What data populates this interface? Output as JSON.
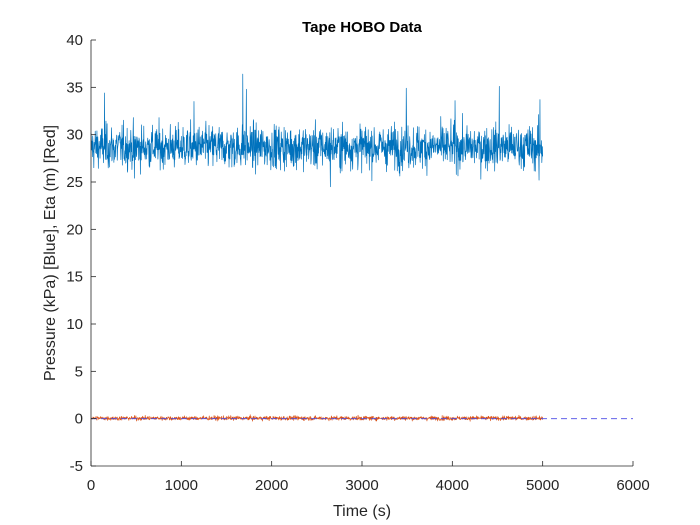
{
  "chart_data": {
    "type": "line",
    "title": "Tape HOBO Data",
    "xlabel": "Time (s)",
    "ylabel": "Pressure (kPa) [Blue], Eta (m) [Red]",
    "xlim": [
      0,
      6000
    ],
    "ylim": [
      -5,
      40
    ],
    "xticks": [
      0,
      1000,
      2000,
      3000,
      4000,
      5000,
      6000
    ],
    "yticks": [
      -5,
      0,
      5,
      10,
      15,
      20,
      25,
      30,
      35,
      40
    ],
    "grid": false,
    "legend": "none",
    "series": [
      {
        "key": "pressure",
        "color": "#0072BD",
        "style": "solid",
        "x_range": [
          0,
          5000
        ],
        "mean": 28.7,
        "min": 24.5,
        "max": 36.4,
        "noise_sd": 1.5,
        "spikes": [
          {
            "x": 1680,
            "y": 36.4
          },
          {
            "x": 1720,
            "y": 34.8
          },
          {
            "x": 4520,
            "y": 35.1
          },
          {
            "x": 3490,
            "y": 34.9
          },
          {
            "x": 150,
            "y": 34.4
          },
          {
            "x": 2650,
            "y": 24.5
          },
          {
            "x": 4970,
            "y": 33.7
          },
          {
            "x": 4960,
            "y": 25.2
          },
          {
            "x": 4030,
            "y": 33.6
          },
          {
            "x": 1140,
            "y": 33.5
          },
          {
            "x": 480,
            "y": 25.4
          }
        ]
      },
      {
        "key": "eta",
        "color": "#D95319",
        "style": "solid",
        "x_range": [
          0,
          5000
        ],
        "mean": 0.05,
        "min": -0.3,
        "max": 0.6,
        "noise_sd": 0.15
      },
      {
        "key": "mean-level",
        "color": "#4A4AE6",
        "style": "dashed",
        "x": [
          0,
          6000
        ],
        "y": [
          0,
          0
        ]
      }
    ]
  }
}
